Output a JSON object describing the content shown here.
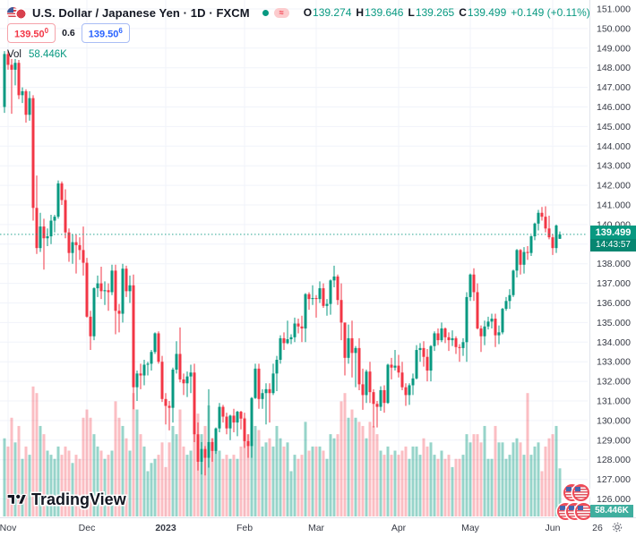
{
  "header": {
    "symbol_title": "U.S. Dollar / Japanese Yen · 1D · FXCM",
    "ohlc": {
      "o_label": "O",
      "o": "139.274",
      "h_label": "H",
      "h": "139.646",
      "l_label": "L",
      "l": "139.265",
      "c_label": "C",
      "c": "139.499",
      "change": "+0.149 (+0.11%)"
    },
    "sell": {
      "main": "139.50",
      "sup": "0"
    },
    "spread": "0.6",
    "buy": {
      "main": "139.50",
      "sup": "6"
    },
    "vol_label": "Vol",
    "vol_value": "58.446K",
    "flag_pill_glyph": "≈"
  },
  "watermark": "TradingView",
  "price_tag": {
    "price": "139.499",
    "countdown": "14:43:57"
  },
  "volume_tag": "58.446K",
  "colors": {
    "up": "#089981",
    "down": "#f23645",
    "vol_up": "rgba(8,153,129,0.42)",
    "vol_down": "rgba(242,54,69,0.32)",
    "grid": "#f0f3fa",
    "axis_text": "#363a45",
    "current_line": "#089981",
    "accent_blue": "#2962ff"
  },
  "chart_data": {
    "type": "candlestick+volume",
    "title": "U.S. Dollar / Japanese Yen · 1D · FXCM",
    "price_axis": {
      "min": 126,
      "max": 151,
      "labels": [
        "151.000",
        "150.000",
        "149.000",
        "148.000",
        "147.000",
        "146.000",
        "145.000",
        "144.000",
        "143.000",
        "142.000",
        "141.000",
        "140.000",
        "138.000",
        "137.000",
        "136.000",
        "135.000",
        "134.000",
        "133.000",
        "132.000",
        "131.000",
        "130.000",
        "129.000",
        "128.000",
        "127.000",
        "126.000"
      ]
    },
    "current_price": 139.499,
    "time_axis": {
      "months": [
        {
          "label": "Nov",
          "index": 1
        },
        {
          "label": "Dec",
          "index": 23
        },
        {
          "label": "2023",
          "index": 45,
          "bold": true
        },
        {
          "label": "Feb",
          "index": 67
        },
        {
          "label": "Mar",
          "index": 87
        },
        {
          "label": "Apr",
          "index": 110
        },
        {
          "label": "May",
          "index": 130
        },
        {
          "label": "Jun",
          "index": 153
        }
      ],
      "extra_label": "26"
    },
    "volume_unit": "K",
    "last_volume": 58.446,
    "candles": [
      [
        146.0,
        148.85,
        145.7,
        148.7,
        95
      ],
      [
        148.7,
        148.85,
        147.9,
        148.15,
        85
      ],
      [
        148.15,
        148.45,
        145.65,
        147.9,
        120
      ],
      [
        147.9,
        148.45,
        147.1,
        148.25,
        90
      ],
      [
        148.25,
        148.4,
        146.4,
        146.6,
        110
      ],
      [
        146.6,
        147.0,
        146.2,
        146.8,
        70
      ],
      [
        146.8,
        146.9,
        145.2,
        145.6,
        85
      ],
      [
        145.6,
        146.8,
        145.3,
        146.45,
        75
      ],
      [
        146.45,
        146.6,
        140.2,
        140.85,
        158
      ],
      [
        140.85,
        142.5,
        138.5,
        138.8,
        150
      ],
      [
        138.8,
        140.6,
        138.6,
        139.9,
        110
      ],
      [
        139.9,
        140.3,
        137.7,
        139.3,
        100
      ],
      [
        139.3,
        139.8,
        138.9,
        139.4,
        80
      ],
      [
        139.4,
        140.5,
        139.0,
        140.2,
        75
      ],
      [
        140.2,
        140.5,
        139.6,
        140.4,
        70
      ],
      [
        140.4,
        142.25,
        140.3,
        142.1,
        85
      ],
      [
        142.1,
        142.2,
        141.0,
        141.25,
        75
      ],
      [
        141.25,
        141.8,
        139.3,
        139.6,
        85
      ],
      [
        139.6,
        139.8,
        138.1,
        138.55,
        80
      ],
      [
        138.55,
        139.5,
        138.0,
        139.1,
        65
      ],
      [
        139.1,
        139.5,
        137.5,
        138.95,
        75
      ],
      [
        138.95,
        139.35,
        138.2,
        138.7,
        70
      ],
      [
        138.7,
        139.9,
        137.4,
        138.05,
        120
      ],
      [
        138.05,
        138.3,
        135.25,
        135.3,
        130
      ],
      [
        135.3,
        135.6,
        133.6,
        134.3,
        120
      ],
      [
        134.3,
        136.8,
        134.1,
        136.75,
        100
      ],
      [
        136.75,
        137.4,
        136.3,
        137.0,
        85
      ],
      [
        137.0,
        137.85,
        136.2,
        136.6,
        80
      ],
      [
        136.6,
        137.1,
        135.9,
        136.65,
        70
      ],
      [
        136.65,
        137.0,
        135.6,
        136.55,
        75
      ],
      [
        136.55,
        137.95,
        136.4,
        137.65,
        80
      ],
      [
        137.65,
        137.95,
        134.4,
        135.6,
        140
      ],
      [
        135.6,
        135.95,
        134.5,
        135.45,
        120
      ],
      [
        135.45,
        138.0,
        135.0,
        137.75,
        110
      ],
      [
        137.75,
        137.9,
        136.3,
        136.6,
        95
      ],
      [
        136.6,
        137.4,
        136.0,
        136.9,
        80
      ],
      [
        136.9,
        137.45,
        130.58,
        131.7,
        150
      ],
      [
        131.7,
        132.55,
        131.0,
        132.4,
        130
      ],
      [
        132.4,
        132.9,
        131.6,
        132.3,
        100
      ],
      [
        132.3,
        133.1,
        131.8,
        132.85,
        85
      ],
      [
        132.85,
        133.0,
        132.3,
        132.9,
        55
      ],
      [
        132.9,
        133.6,
        132.55,
        133.5,
        65
      ],
      [
        133.5,
        134.5,
        133.4,
        134.45,
        70
      ],
      [
        134.45,
        134.55,
        132.9,
        133.0,
        75
      ],
      [
        133.0,
        133.3,
        130.95,
        131.1,
        90
      ],
      [
        131.1,
        131.4,
        129.8,
        130.75,
        60
      ],
      [
        130.75,
        131.0,
        129.5,
        130.65,
        90
      ],
      [
        130.65,
        132.7,
        129.9,
        132.6,
        110
      ],
      [
        132.6,
        134.05,
        132.4,
        133.4,
        100
      ],
      [
        133.4,
        134.75,
        131.95,
        132.1,
        130
      ],
      [
        132.1,
        132.4,
        131.3,
        131.9,
        85
      ],
      [
        131.9,
        132.5,
        131.2,
        132.25,
        75
      ],
      [
        132.25,
        132.85,
        131.4,
        132.45,
        80
      ],
      [
        132.45,
        132.9,
        128.9,
        129.3,
        130
      ],
      [
        129.3,
        129.9,
        127.45,
        127.9,
        125
      ],
      [
        127.9,
        128.9,
        127.25,
        128.55,
        100
      ],
      [
        128.55,
        128.7,
        127.2,
        128.1,
        110
      ],
      [
        128.1,
        131.6,
        127.6,
        128.9,
        135
      ],
      [
        128.9,
        129.1,
        127.9,
        128.45,
        95
      ],
      [
        128.45,
        129.65,
        128.3,
        129.6,
        85
      ],
      [
        129.6,
        130.9,
        129.4,
        130.7,
        80
      ],
      [
        130.7,
        130.8,
        129.9,
        130.2,
        70
      ],
      [
        130.2,
        130.4,
        129.3,
        129.6,
        75
      ],
      [
        129.6,
        130.3,
        129.0,
        130.25,
        70
      ],
      [
        130.25,
        130.6,
        129.4,
        129.9,
        75
      ],
      [
        129.9,
        130.5,
        129.2,
        130.45,
        70
      ],
      [
        130.45,
        130.5,
        129.55,
        130.1,
        85
      ],
      [
        130.1,
        130.4,
        128.6,
        128.95,
        120
      ],
      [
        128.95,
        129.3,
        128.1,
        128.7,
        100
      ],
      [
        128.7,
        131.2,
        128.1,
        131.15,
        105
      ],
      [
        131.15,
        132.9,
        131.1,
        132.65,
        110
      ],
      [
        132.65,
        132.9,
        130.6,
        131.1,
        105
      ],
      [
        131.1,
        131.6,
        130.6,
        131.4,
        85
      ],
      [
        131.4,
        131.9,
        129.8,
        131.6,
        90
      ],
      [
        131.6,
        131.9,
        129.9,
        131.4,
        95
      ],
      [
        131.4,
        132.9,
        131.3,
        132.4,
        85
      ],
      [
        132.4,
        133.3,
        131.5,
        133.1,
        110
      ],
      [
        133.1,
        134.35,
        132.9,
        134.2,
        95
      ],
      [
        134.2,
        134.5,
        133.6,
        133.95,
        85
      ],
      [
        133.95,
        135.1,
        133.9,
        134.15,
        90
      ],
      [
        134.15,
        134.4,
        133.9,
        134.25,
        55
      ],
      [
        134.25,
        135.25,
        134.0,
        134.95,
        75
      ],
      [
        134.95,
        135.2,
        134.45,
        134.8,
        70
      ],
      [
        134.8,
        135.35,
        134.0,
        134.7,
        75
      ],
      [
        134.7,
        136.5,
        134.0,
        136.45,
        115
      ],
      [
        136.45,
        136.55,
        135.65,
        136.2,
        80
      ],
      [
        136.2,
        136.9,
        135.9,
        136.25,
        85
      ],
      [
        136.25,
        136.4,
        135.25,
        136.2,
        85
      ],
      [
        136.2,
        137.1,
        136.0,
        136.75,
        85
      ],
      [
        136.75,
        137.0,
        135.75,
        135.85,
        80
      ],
      [
        135.85,
        136.2,
        135.35,
        135.95,
        70
      ],
      [
        135.95,
        137.2,
        135.4,
        137.15,
        100
      ],
      [
        137.15,
        137.9,
        136.8,
        137.35,
        95
      ],
      [
        137.35,
        137.45,
        135.9,
        136.15,
        100
      ],
      [
        136.15,
        137.0,
        134.1,
        135.0,
        140
      ],
      [
        135.0,
        135.0,
        132.3,
        133.2,
        150
      ],
      [
        133.2,
        134.9,
        132.9,
        134.2,
        120
      ],
      [
        134.2,
        135.1,
        132.2,
        133.45,
        130
      ],
      [
        133.45,
        133.8,
        131.7,
        133.7,
        120
      ],
      [
        133.7,
        134.2,
        131.55,
        131.85,
        115
      ],
      [
        131.85,
        132.65,
        130.55,
        131.3,
        110
      ],
      [
        131.3,
        132.6,
        130.9,
        132.5,
        95
      ],
      [
        132.5,
        133.0,
        130.9,
        131.45,
        115
      ],
      [
        131.45,
        131.6,
        129.65,
        130.85,
        110
      ],
      [
        130.85,
        131.0,
        129.65,
        130.7,
        100
      ],
      [
        130.7,
        131.75,
        130.5,
        131.55,
        80
      ],
      [
        131.55,
        131.8,
        130.4,
        130.9,
        75
      ],
      [
        130.9,
        132.9,
        130.85,
        132.85,
        85
      ],
      [
        132.85,
        133.2,
        132.1,
        132.7,
        75
      ],
      [
        132.7,
        133.6,
        132.55,
        132.8,
        80
      ],
      [
        132.8,
        133.35,
        132.2,
        132.45,
        75
      ],
      [
        132.45,
        133.0,
        131.55,
        131.7,
        80
      ],
      [
        131.7,
        131.9,
        130.75,
        131.3,
        85
      ],
      [
        131.3,
        131.9,
        130.8,
        131.8,
        70
      ],
      [
        131.8,
        132.4,
        131.3,
        132.15,
        85
      ],
      [
        132.15,
        133.85,
        132.1,
        133.6,
        85
      ],
      [
        133.6,
        133.95,
        133.0,
        133.7,
        75
      ],
      [
        133.7,
        134.05,
        132.75,
        133.25,
        95
      ],
      [
        133.25,
        133.65,
        132.0,
        132.55,
        85
      ],
      [
        132.55,
        133.85,
        132.0,
        133.8,
        90
      ],
      [
        133.8,
        134.55,
        133.55,
        134.45,
        75
      ],
      [
        134.45,
        134.7,
        133.85,
        134.1,
        70
      ],
      [
        134.1,
        135.0,
        134.0,
        134.7,
        80
      ],
      [
        134.7,
        134.75,
        133.95,
        134.25,
        70
      ],
      [
        134.25,
        134.5,
        133.55,
        134.1,
        75
      ],
      [
        134.1,
        134.6,
        133.8,
        134.2,
        60
      ],
      [
        134.2,
        134.3,
        133.4,
        133.75,
        70
      ],
      [
        133.75,
        133.9,
        133.0,
        133.7,
        70
      ],
      [
        133.7,
        134.2,
        133.3,
        134.0,
        75
      ],
      [
        134.0,
        136.55,
        133.0,
        136.3,
        100
      ],
      [
        136.3,
        137.5,
        136.1,
        137.45,
        90
      ],
      [
        137.45,
        137.77,
        136.1,
        136.55,
        100
      ],
      [
        136.55,
        137.0,
        134.65,
        134.7,
        100
      ],
      [
        134.7,
        134.85,
        133.5,
        134.3,
        90
      ],
      [
        134.3,
        135.1,
        133.85,
        134.8,
        110
      ],
      [
        134.8,
        135.3,
        134.65,
        135.05,
        70
      ],
      [
        135.05,
        135.45,
        134.7,
        135.2,
        70
      ],
      [
        135.2,
        135.45,
        133.75,
        134.35,
        110
      ],
      [
        134.35,
        134.85,
        133.9,
        134.5,
        90
      ],
      [
        134.5,
        135.75,
        134.4,
        135.7,
        90
      ],
      [
        135.7,
        136.3,
        135.6,
        136.1,
        70
      ],
      [
        136.1,
        136.7,
        135.7,
        136.4,
        75
      ],
      [
        136.4,
        137.7,
        136.3,
        137.65,
        90
      ],
      [
        137.65,
        138.75,
        137.3,
        138.7,
        95
      ],
      [
        138.7,
        138.75,
        137.45,
        137.95,
        90
      ],
      [
        137.95,
        138.85,
        137.5,
        138.6,
        75
      ],
      [
        138.6,
        138.9,
        138.2,
        138.55,
        150
      ],
      [
        138.55,
        139.45,
        138.4,
        139.4,
        75
      ],
      [
        139.4,
        140.1,
        139.2,
        140.05,
        85
      ],
      [
        140.05,
        140.75,
        139.7,
        140.6,
        90
      ],
      [
        140.6,
        140.9,
        140.2,
        140.4,
        55
      ],
      [
        140.4,
        140.93,
        139.6,
        139.8,
        85
      ],
      [
        139.8,
        140.45,
        139.25,
        139.35,
        95
      ],
      [
        139.35,
        139.5,
        138.45,
        138.8,
        100
      ],
      [
        138.8,
        140.0,
        138.55,
        139.95,
        110
      ],
      [
        139.274,
        139.646,
        139.265,
        139.499,
        58.446
      ]
    ]
  }
}
